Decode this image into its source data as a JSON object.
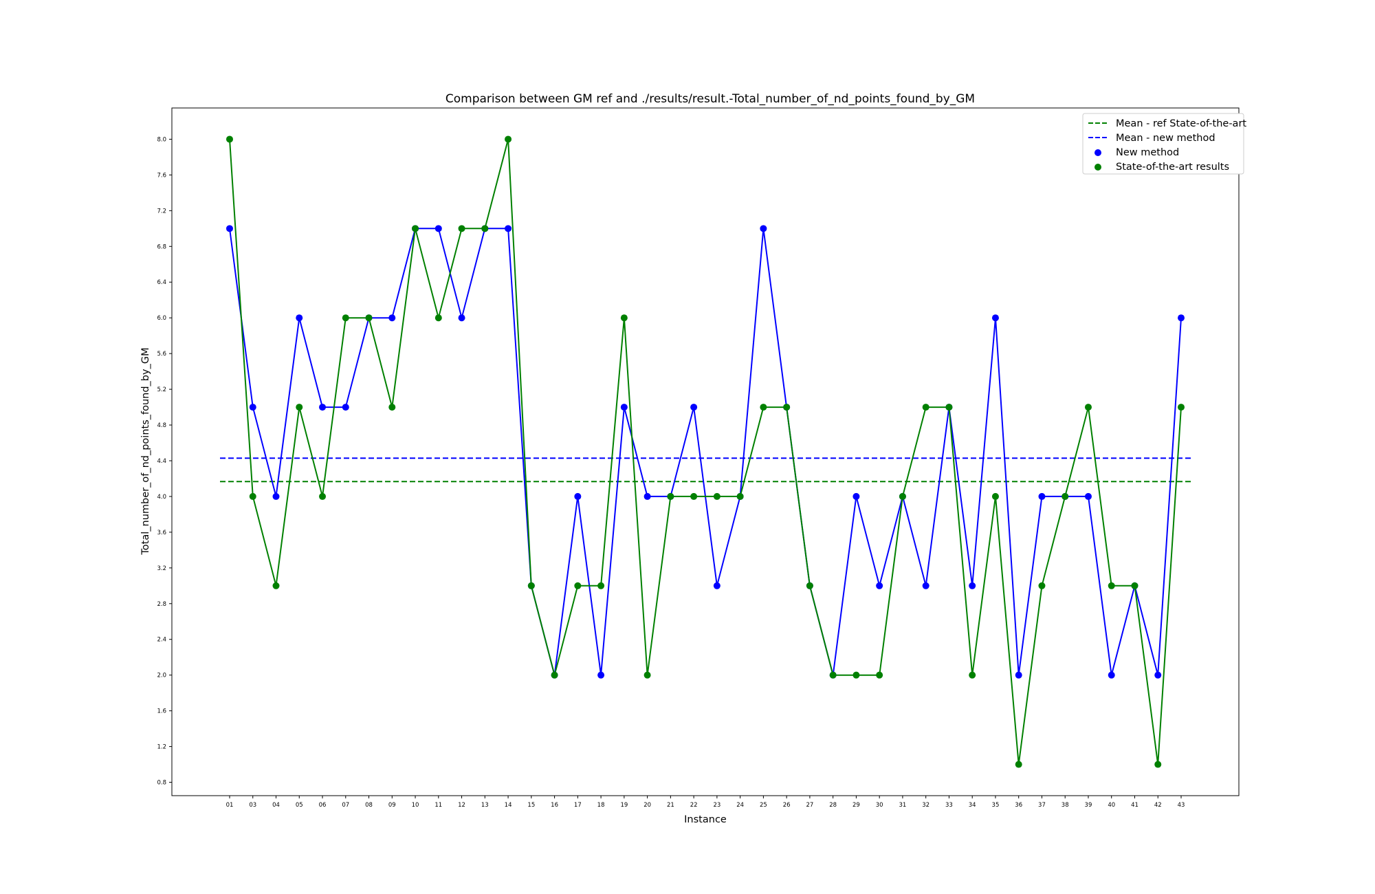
{
  "chart_data": {
    "type": "line",
    "title": "Comparison between GM ref and ./results/result.-Total_number_of_nd_points_found_by_GM",
    "xlabel": "Instance",
    "ylabel": "Total_number_of_nd_points_found_by_GM",
    "categories": [
      "01",
      "03",
      "04",
      "05",
      "06",
      "07",
      "08",
      "09",
      "10",
      "11",
      "12",
      "13",
      "14",
      "15",
      "16",
      "17",
      "18",
      "19",
      "20",
      "21",
      "22",
      "23",
      "24",
      "25",
      "26",
      "27",
      "28",
      "29",
      "30",
      "31",
      "32",
      "33",
      "34",
      "35",
      "36",
      "37",
      "38",
      "39",
      "40",
      "41",
      "42",
      "43"
    ],
    "series": [
      {
        "name": "New method",
        "color": "#0000ff",
        "values": [
          7,
          5,
          4,
          6,
          5,
          5,
          6,
          6,
          7,
          7,
          6,
          7,
          7,
          3,
          2,
          4,
          2,
          5,
          4,
          4,
          5,
          3,
          4,
          7,
          5,
          3,
          2,
          4,
          3,
          4,
          3,
          5,
          3,
          6,
          2,
          4,
          4,
          4,
          2,
          3,
          2,
          6
        ]
      },
      {
        "name": "State-of-the-art results",
        "color": "#008000",
        "values": [
          8,
          4,
          3,
          5,
          4,
          6,
          6,
          5,
          7,
          6,
          7,
          7,
          8,
          3,
          2,
          3,
          3,
          6,
          2,
          4,
          4,
          4,
          4,
          5,
          5,
          3,
          2,
          2,
          2,
          4,
          5,
          5,
          2,
          4,
          1,
          3,
          4,
          5,
          3,
          3,
          1,
          5
        ]
      }
    ],
    "mean_lines": [
      {
        "name": "Mean - ref State-of-the-art",
        "color": "#008000",
        "value": 4.1667
      },
      {
        "name": "Mean - new method",
        "color": "#0000ff",
        "value": 4.4286
      }
    ],
    "yticks": [
      "0.8",
      "1.2",
      "1.6",
      "2.0",
      "2.4",
      "2.8",
      "3.2",
      "3.6",
      "4.0",
      "4.4",
      "4.8",
      "5.2",
      "5.6",
      "6.0",
      "6.4",
      "6.8",
      "7.2",
      "7.6",
      "8.0"
    ],
    "ylim": [
      0.65,
      8.35
    ],
    "grid": false,
    "legend": {
      "placement": "top-right",
      "entries": [
        "Mean - ref State-of-the-art",
        "Mean - new method",
        "New method",
        "State-of-the-art results"
      ]
    }
  }
}
